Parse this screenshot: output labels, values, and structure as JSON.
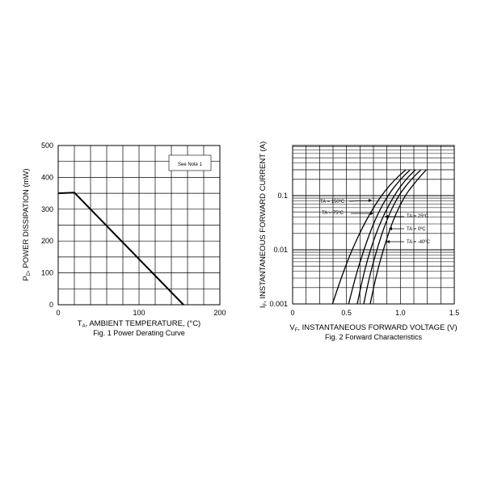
{
  "chart_data": [
    {
      "type": "line",
      "title": "Fig. 1  Power Derating Curve",
      "ylabel_main": "P",
      "ylabel_sub": "D",
      "ylabel_rest": ", POWER DISSIPATION (mW)",
      "xlabel_main": "T",
      "xlabel_sub": "A",
      "xlabel_rest": ", AMBIENT TEMPERATURE, (°C)",
      "xlim": [
        0,
        200
      ],
      "ylim": [
        0,
        500
      ],
      "x_ticks": [
        "0",
        "100",
        "200"
      ],
      "y_ticks": [
        "0",
        "100",
        "200",
        "300",
        "400",
        "500"
      ],
      "grid": true,
      "note": "See Note 1",
      "series": [
        {
          "x": [
            0,
            20,
            155
          ],
          "y": [
            350,
            352,
            0
          ]
        }
      ]
    },
    {
      "type": "line",
      "title": "Fig. 2  Forward Characteristics",
      "ylabel_main": "I",
      "ylabel_sub": "F",
      "ylabel_rest": ", INSTANTANEOUS FORWARD CURRENT (A)",
      "xlabel_main": "V",
      "xlabel_sub": "F",
      "xlabel_rest": ", INSTANTANEOUS FORWARD VOLTAGE (V)",
      "xlim": [
        0,
        1.5
      ],
      "ylim": [
        0.001,
        0.3
      ],
      "yscale": "log",
      "x_ticks": [
        "0",
        "0.5",
        "1.0",
        "1.5"
      ],
      "y_ticks": [
        "0.1",
        "0.01",
        "0.001"
      ],
      "grid": true,
      "series": [
        {
          "name": "TA = 150ºC",
          "x": [
            0.37,
            0.45,
            0.55,
            0.68,
            0.82,
            0.95,
            1.05
          ],
          "y": [
            0.001,
            0.003,
            0.01,
            0.035,
            0.1,
            0.2,
            0.3
          ]
        },
        {
          "name": "TA = 75ºC",
          "x": [
            0.52,
            0.58,
            0.66,
            0.76,
            0.88,
            1.0,
            1.09
          ],
          "y": [
            0.001,
            0.003,
            0.01,
            0.035,
            0.1,
            0.2,
            0.3
          ]
        },
        {
          "name": "TA = 25ºC",
          "x": [
            0.6,
            0.65,
            0.72,
            0.82,
            0.94,
            1.05,
            1.14
          ],
          "y": [
            0.001,
            0.003,
            0.01,
            0.035,
            0.1,
            0.2,
            0.3
          ]
        },
        {
          "name": "TA = 0ºC",
          "x": [
            0.66,
            0.71,
            0.78,
            0.87,
            0.98,
            1.1,
            1.19
          ],
          "y": [
            0.001,
            0.003,
            0.01,
            0.035,
            0.1,
            0.2,
            0.3
          ]
        },
        {
          "name": "TA = -40ºC",
          "x": [
            0.72,
            0.77,
            0.84,
            0.93,
            1.04,
            1.16,
            1.24
          ],
          "y": [
            0.001,
            0.003,
            0.01,
            0.035,
            0.1,
            0.2,
            0.3
          ]
        }
      ]
    }
  ]
}
